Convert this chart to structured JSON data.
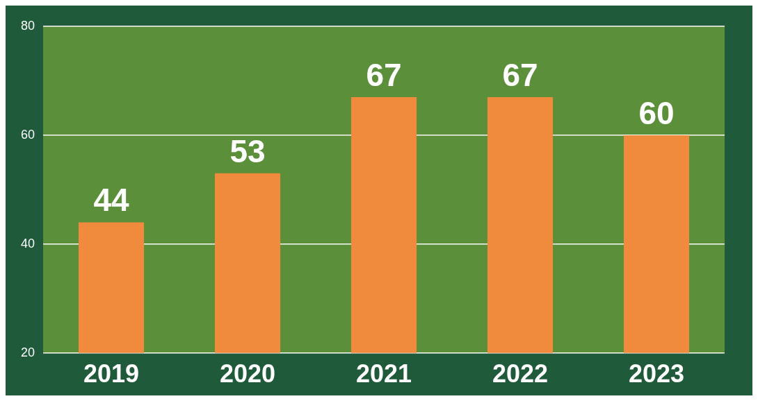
{
  "chart_data": {
    "type": "bar",
    "categories": [
      "2019",
      "2020",
      "2021",
      "2022",
      "2023"
    ],
    "values": [
      44,
      53,
      67,
      67,
      60
    ],
    "color": "#f08a3c",
    "ylim": [
      20,
      80
    ],
    "yticks": [
      20,
      40,
      60,
      80
    ],
    "grid": "y",
    "data_labels": true,
    "legend": false
  }
}
